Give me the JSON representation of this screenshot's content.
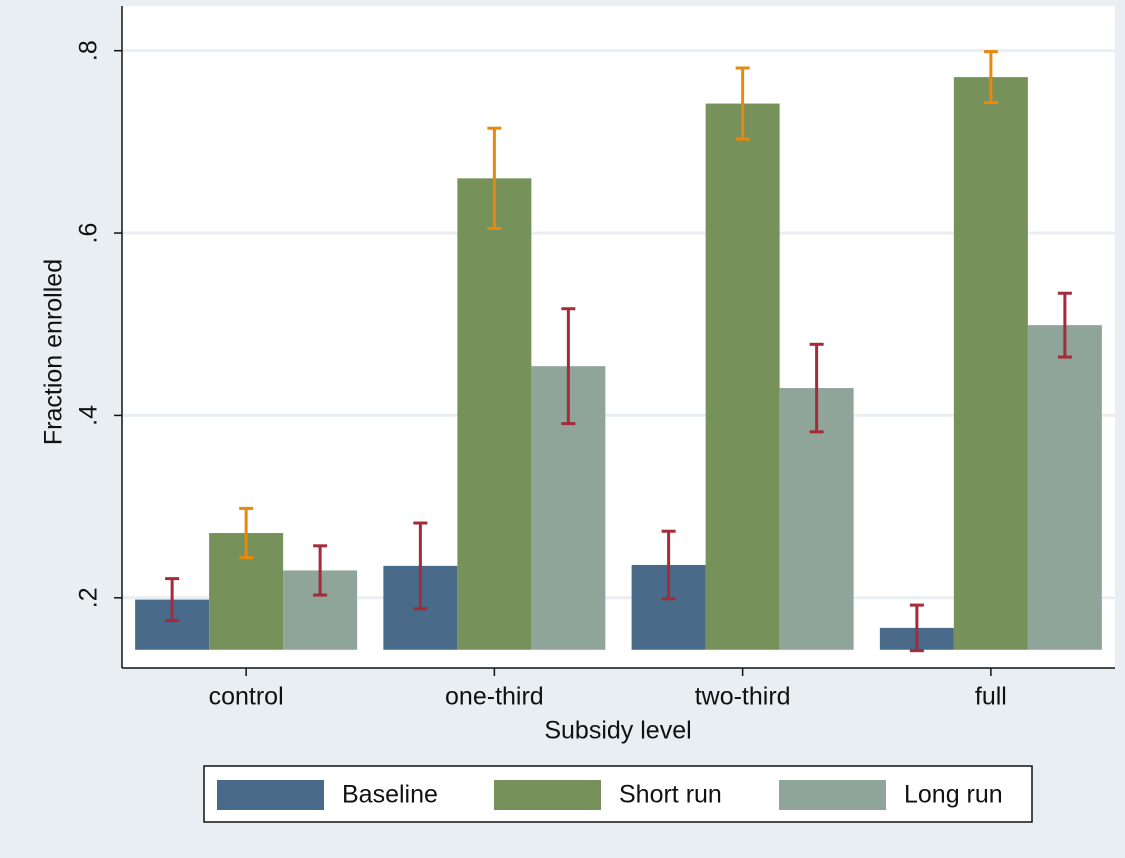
{
  "chart_data": {
    "type": "bar",
    "x_label": "Subsidy level",
    "y_label": "Fraction enrolled",
    "categories": [
      "control",
      "one-third",
      "two-third",
      "full"
    ],
    "series": [
      {
        "name": "Baseline",
        "color": "#4a6a8a",
        "error_color": "#a52a3a",
        "values": [
          0.198,
          0.235,
          0.236,
          0.167
        ],
        "errors": [
          0.023,
          0.047,
          0.037,
          0.025
        ]
      },
      {
        "name": "Short run",
        "color": "#76915a",
        "error_color": "#e8880c",
        "values": [
          0.271,
          0.66,
          0.742,
          0.771
        ],
        "errors": [
          0.027,
          0.055,
          0.039,
          0.028
        ]
      },
      {
        "name": "Long run",
        "color": "#8fa59a",
        "error_color": "#a52a3a",
        "values": [
          0.23,
          0.454,
          0.43,
          0.499
        ],
        "errors": [
          0.027,
          0.063,
          0.048,
          0.035
        ]
      }
    ],
    "bar_base": 0.143,
    "ylim": [
      0.123,
      0.849
    ],
    "yticks": [
      {
        "value": 0.2,
        "label": ".2"
      },
      {
        "value": 0.4,
        "label": ".4"
      },
      {
        "value": 0.6,
        "label": ".6"
      },
      {
        "value": 0.8,
        "label": ".8"
      }
    ],
    "grid": true,
    "legend": "bottom"
  }
}
